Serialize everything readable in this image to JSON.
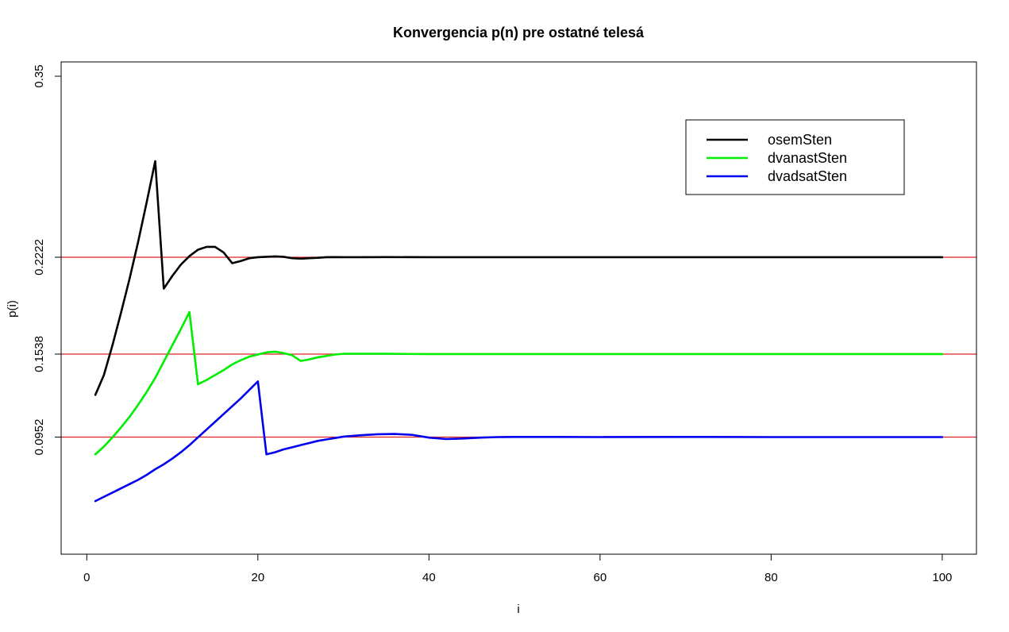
{
  "chart_data": {
    "type": "line",
    "title": "Konvergencia p(n) pre ostatné telesá",
    "xlabel": "i",
    "ylabel": "p(i)",
    "xlim": [
      -3,
      104
    ],
    "ylim": [
      0.0125,
      0.3601
    ],
    "x_ticks": [
      0,
      20,
      40,
      60,
      80,
      100
    ],
    "y_ticks": [
      0.0952,
      0.1538,
      0.2222,
      0.35
    ],
    "y_tick_labels": [
      "0.0952",
      "0.1538",
      "0.2222",
      "0.35"
    ],
    "x_tick_labels": [
      "0",
      "20",
      "40",
      "60",
      "80",
      "100"
    ],
    "grid": false,
    "legend_position": "top-right",
    "reference_lines": [
      {
        "y": 0.2222,
        "color": "#e02020"
      },
      {
        "y": 0.1538,
        "color": "#e02020"
      },
      {
        "y": 0.0952,
        "color": "#e02020"
      }
    ],
    "series": [
      {
        "name": "osemSten",
        "color": "#000000",
        "x": [
          1,
          2,
          3,
          4,
          5,
          6,
          7,
          8,
          9,
          10,
          11,
          12,
          13,
          14,
          15,
          16,
          17,
          18,
          19,
          20,
          21,
          22,
          23,
          24,
          25,
          26,
          27,
          28,
          29,
          30,
          32,
          35,
          40,
          50,
          60,
          70,
          80,
          90,
          100
        ],
        "y": [
          0.125,
          0.139,
          0.16,
          0.183,
          0.207,
          0.233,
          0.261,
          0.29,
          0.2,
          0.209,
          0.217,
          0.223,
          0.2275,
          0.2295,
          0.2295,
          0.2255,
          0.218,
          0.2195,
          0.2215,
          0.2222,
          0.2225,
          0.2228,
          0.2225,
          0.2215,
          0.2212,
          0.2215,
          0.2218,
          0.2222,
          0.2223,
          0.2222,
          0.2222,
          0.2223,
          0.2222,
          0.2222,
          0.2222,
          0.2222,
          0.2222,
          0.2222,
          0.2222
        ]
      },
      {
        "name": "dvanastSten",
        "color": "#00ee00",
        "x": [
          1,
          2,
          3,
          4,
          5,
          6,
          7,
          8,
          9,
          10,
          11,
          12,
          13,
          14,
          15,
          16,
          17,
          18,
          19,
          20,
          21,
          22,
          23,
          24,
          25,
          26,
          27,
          28,
          29,
          30,
          32,
          35,
          40,
          45,
          50,
          60,
          70,
          80,
          90,
          100
        ],
        "y": [
          0.083,
          0.0885,
          0.095,
          0.102,
          0.1095,
          0.118,
          0.127,
          0.137,
          0.1485,
          0.16,
          0.1715,
          0.1835,
          0.1325,
          0.1355,
          0.139,
          0.1425,
          0.1465,
          0.1495,
          0.152,
          0.1535,
          0.155,
          0.1555,
          0.1545,
          0.153,
          0.149,
          0.15,
          0.1515,
          0.1525,
          0.1535,
          0.154,
          0.154,
          0.154,
          0.1538,
          0.1538,
          0.1538,
          0.1538,
          0.1538,
          0.1538,
          0.1538,
          0.1538
        ]
      },
      {
        "name": "dvadsatSten",
        "color": "#0000ee",
        "x": [
          1,
          2,
          3,
          4,
          5,
          6,
          7,
          8,
          9,
          10,
          11,
          12,
          13,
          14,
          15,
          16,
          17,
          18,
          19,
          20,
          21,
          22,
          23,
          24,
          25,
          26,
          27,
          28,
          29,
          30,
          32,
          34,
          36,
          38,
          40,
          42,
          44,
          46,
          48,
          50,
          55,
          60,
          70,
          80,
          90,
          100
        ],
        "y": [
          0.05,
          0.053,
          0.056,
          0.059,
          0.062,
          0.065,
          0.0685,
          0.0725,
          0.076,
          0.08,
          0.0845,
          0.0895,
          0.095,
          0.1005,
          0.106,
          0.1115,
          0.117,
          0.1225,
          0.1285,
          0.1345,
          0.083,
          0.0845,
          0.0865,
          0.088,
          0.0895,
          0.091,
          0.0925,
          0.0935,
          0.0945,
          0.0955,
          0.0965,
          0.0972,
          0.0974,
          0.0968,
          0.0948,
          0.0938,
          0.0942,
          0.0948,
          0.0952,
          0.0953,
          0.0953,
          0.0952,
          0.0953,
          0.0952,
          0.0952,
          0.0952
        ]
      }
    ]
  }
}
